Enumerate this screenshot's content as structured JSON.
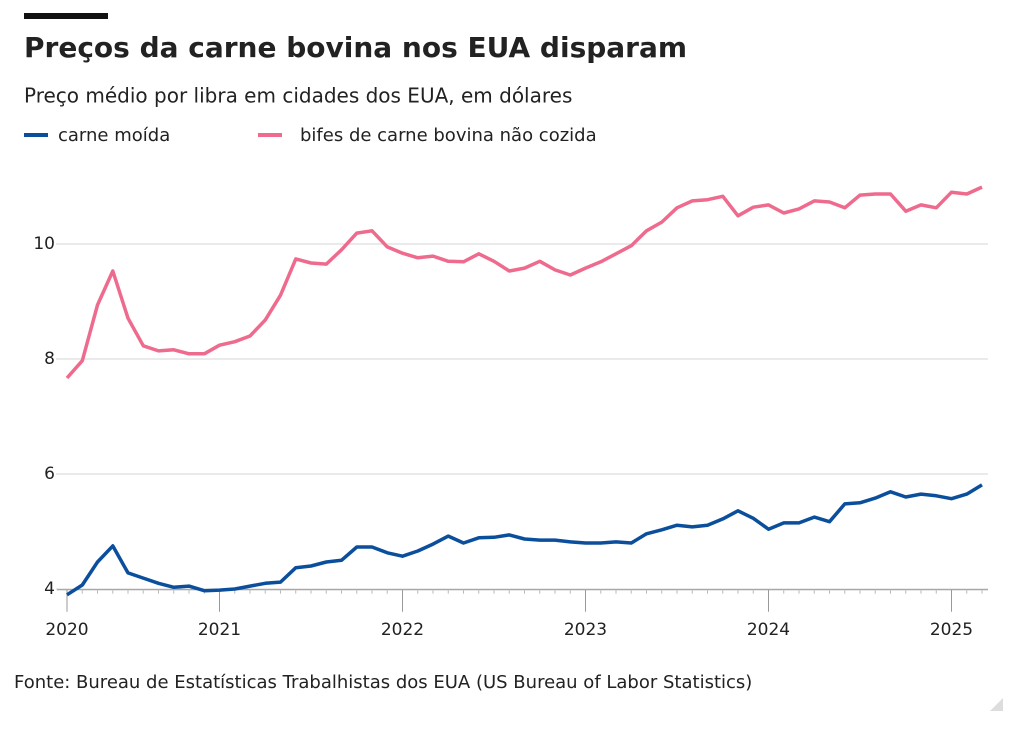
{
  "chart_data": {
    "type": "line",
    "title": "Preços da carne bovina nos EUA disparam",
    "subtitle": "Preço médio por libra em cidades dos EUA, em dólares",
    "source": "Fonte: Bureau de Estatísticas Trabalhistas dos EUA (US Bureau of Labor Statistics)",
    "categories": [
      "2020",
      null,
      null,
      null,
      null,
      null,
      null,
      null,
      null,
      null,
      "2021",
      null,
      null,
      null,
      null,
      null,
      null,
      null,
      null,
      null,
      null,
      null,
      "2022",
      null,
      null,
      null,
      null,
      null,
      null,
      null,
      null,
      null,
      null,
      null,
      "2023",
      null,
      null,
      null,
      null,
      null,
      null,
      null,
      null,
      null,
      null,
      null,
      "2024",
      null,
      null,
      null,
      null,
      null,
      null,
      null,
      null,
      null,
      null,
      null,
      "2025",
      null,
      null
    ],
    "series": [
      {
        "name": "carne moída",
        "color": "#0b4f9c",
        "values": [
          3.9,
          4.07,
          4.47,
          4.75,
          4.28,
          4.19,
          4.1,
          4.03,
          4.05,
          3.97,
          3.98,
          4.0,
          4.05,
          4.1,
          4.12,
          4.37,
          4.4,
          4.47,
          4.5,
          4.73,
          4.73,
          4.63,
          4.57,
          4.66,
          4.78,
          4.92,
          4.8,
          4.89,
          4.9,
          4.94,
          4.87,
          4.85,
          4.85,
          4.82,
          4.8,
          4.8,
          4.82,
          4.8,
          4.96,
          5.03,
          5.11,
          5.08,
          5.11,
          5.22,
          5.36,
          5.23,
          5.04,
          5.15,
          5.15,
          5.25,
          5.17,
          5.48,
          5.5,
          5.58,
          5.69,
          5.6,
          5.65,
          5.62,
          5.57,
          5.65,
          5.81
        ]
      },
      {
        "name": "bifes de carne bovina não cozida",
        "color": "#ee6b8e",
        "values": [
          7.67,
          7.97,
          8.94,
          9.53,
          8.71,
          8.23,
          8.14,
          8.16,
          8.09,
          8.09,
          8.24,
          8.3,
          8.4,
          8.68,
          9.11,
          9.74,
          9.67,
          9.65,
          9.9,
          10.19,
          10.23,
          9.95,
          9.84,
          9.76,
          9.79,
          9.7,
          9.69,
          9.83,
          9.7,
          9.53,
          9.58,
          9.7,
          9.55,
          9.46,
          9.58,
          9.69,
          9.83,
          9.97,
          10.23,
          10.38,
          10.63,
          10.75,
          10.77,
          10.83,
          10.49,
          10.64,
          10.68,
          10.54,
          10.61,
          10.75,
          10.73,
          10.63,
          10.85,
          10.87,
          10.87,
          10.57,
          10.68,
          10.63,
          10.9,
          10.87,
          10.99
        ]
      }
    ],
    "ylim": [
      3.9,
      11.1
    ],
    "yticks": [
      4,
      6,
      8,
      10
    ],
    "grid": true
  }
}
